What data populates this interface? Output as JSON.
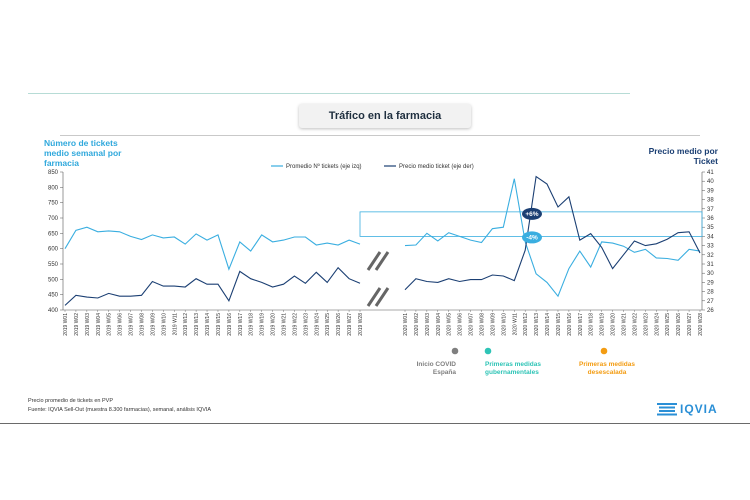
{
  "page": {
    "title": "Tráfico en la farmacia",
    "ylabel_left": "Número de tickets medio semanal por farmacia",
    "ylabel_right": "Precio medio por Ticket",
    "footnote_1": "Precio promedio de tickets en PVP",
    "footnote_2": "Fuente: IQVIA Sell-Out (muestra 8.300 farmacias), semanal, análisis IQVIA",
    "logo_text": "IQVIA",
    "logo_icon": "stacked-bars-icon"
  },
  "colors": {
    "tickets": "#3aaee0",
    "price": "#1b3f73",
    "ref_box": "#3aaee0",
    "covid": "#7f7f7f",
    "medidas": "#2ec4b6",
    "desescalada": "#f39c12"
  },
  "chart_data": {
    "type": "line",
    "xlabel": "",
    "ylabel": "Número de tickets medio semanal por farmacia",
    "y2label": "Precio medio por Ticket",
    "ylim": [
      400,
      850
    ],
    "y2lim": [
      26,
      41
    ],
    "yticks": [
      400,
      450,
      500,
      550,
      600,
      650,
      700,
      750,
      800,
      850
    ],
    "y2ticks": [
      26,
      27,
      28,
      29,
      30,
      31,
      32,
      33,
      34,
      35,
      36,
      37,
      38,
      39,
      40,
      41
    ],
    "grid": false,
    "legend_position": "top",
    "legend": [
      "Promedio Nº tickets (eje izq)",
      "Precio medio ticket (eje der)"
    ],
    "categories_2019": [
      "2019 W01",
      "2019 W02",
      "2019 W03",
      "2019 W04",
      "2019 W05",
      "2019 W06",
      "2019 W07",
      "2019 W08",
      "2019 W09",
      "2019 W10",
      "2019 W11",
      "2019 W12",
      "2019 W13",
      "2019 W14",
      "2019 W15",
      "2019 W16",
      "2019 W17",
      "2019 W18",
      "2019 W19",
      "2019 W20",
      "2019 W21",
      "2019 W22",
      "2019 W23",
      "2019 W24",
      "2019 W25",
      "2019 W26",
      "2019 W27",
      "2019 W28"
    ],
    "categories_2020": [
      "2020 W01",
      "2020 W02",
      "2020 W03",
      "2020 W04",
      "2020 W05",
      "2020 W06",
      "2020 W07",
      "2020 W08",
      "2020 W09",
      "2020 W10",
      "2020 W11",
      "2020 W12",
      "2020 W13",
      "2020 W14",
      "2020 W15",
      "2020 W16",
      "2020 W17",
      "2020 W18",
      "2020 W19",
      "2020 W20",
      "2020 W21",
      "2020 W22",
      "2020 W23",
      "2020 W24",
      "2020 W25",
      "2020 W26",
      "2020 W27",
      "2020 W28"
    ],
    "series": [
      {
        "name": "Promedio Nº tickets (eje izq)",
        "axis": "left",
        "values_2019": [
          600,
          660,
          670,
          655,
          658,
          655,
          640,
          630,
          645,
          635,
          638,
          615,
          648,
          628,
          645,
          533,
          622,
          592,
          645,
          622,
          628,
          638,
          638,
          612,
          618,
          612,
          628,
          615
        ],
        "values_2020": [
          610,
          612,
          650,
          625,
          652,
          640,
          628,
          620,
          665,
          670,
          828,
          622,
          518,
          490,
          445,
          535,
          592,
          540,
          622,
          618,
          608,
          588,
          598,
          570,
          568,
          562,
          598,
          592
        ]
      },
      {
        "name": "Precio medio ticket (eje der)",
        "axis": "right",
        "values_2019": [
          26.5,
          27.6,
          27.4,
          27.3,
          27.8,
          27.5,
          27.5,
          27.6,
          29.1,
          28.6,
          28.6,
          28.5,
          29.4,
          28.8,
          28.8,
          27.0,
          30.2,
          29.4,
          29.0,
          28.5,
          28.8,
          29.7,
          28.9,
          30.1,
          29.0,
          30.6,
          29.4,
          28.9
        ],
        "values_2020": [
          28.2,
          29.4,
          29.1,
          29.0,
          29.4,
          29.1,
          29.3,
          29.3,
          29.8,
          29.7,
          29.2,
          32.5,
          40.5,
          39.7,
          37.2,
          38.3,
          33.6,
          34.3,
          32.8,
          30.5,
          32.0,
          33.5,
          33.0,
          33.2,
          33.7,
          34.4,
          34.5,
          32.2
        ]
      }
    ],
    "annotations": [
      {
        "label": "+6%",
        "series": "Promedio Nº tickets (eje izq)",
        "reference_value": 720,
        "color": "#1b3f73"
      },
      {
        "label": "-4%",
        "series": "Precio medio ticket (eje der)",
        "reference_value": 34.0,
        "color": "#3aaee0"
      }
    ],
    "events": [
      {
        "label": "Inicio COVID España",
        "week": "2020 W11",
        "color": "#7f7f7f"
      },
      {
        "label": "Primeras medidas gubernamentales",
        "week": "2020 W12",
        "color": "#2ec4b6"
      },
      {
        "label": "Primeras medidas desescalada",
        "week": "2020 W20",
        "color": "#f39c12"
      }
    ]
  }
}
